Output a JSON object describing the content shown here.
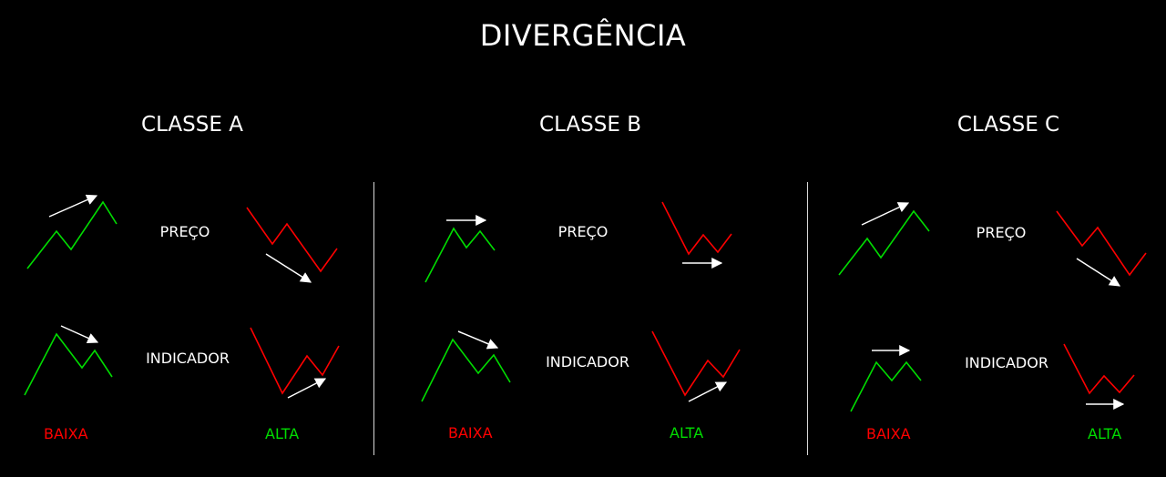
{
  "title": "DIVERGÊNCIA",
  "colors": {
    "background": "#000000",
    "text": "#ffffff",
    "green": "#00dd00",
    "red": "#ff0000",
    "arrow": "#ffffff"
  },
  "classes": [
    {
      "name": "CLASSE A",
      "preco_label": "PREÇO",
      "indicador_label": "INDICADOR",
      "baixa_label": "BAIXA",
      "alta_label": "ALTA"
    },
    {
      "name": "CLASSE B",
      "preco_label": "PREÇO",
      "indicador_label": "INDICADOR",
      "baixa_label": "BAIXA",
      "alta_label": "ALTA"
    },
    {
      "name": "CLASSE C",
      "preco_label": "PREÇO",
      "indicador_label": "INDICADOR",
      "baixa_label": "BAIXA",
      "alta_label": "ALTA"
    }
  ]
}
